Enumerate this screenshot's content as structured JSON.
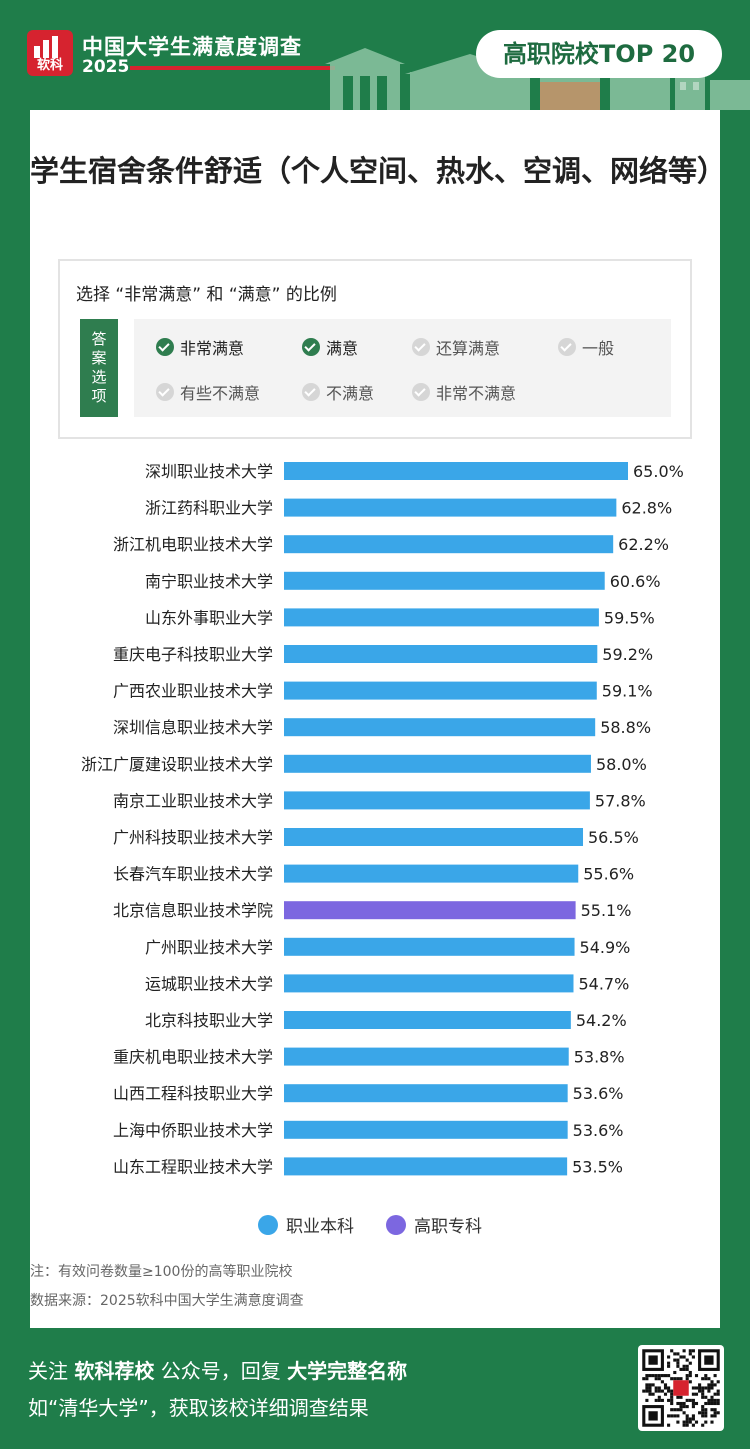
{
  "header": {
    "logo_text": "软科",
    "survey_title": "中国大学生满意度调查",
    "year": "2025",
    "badge": "高职院校TOP 20"
  },
  "title": "学生宿舍条件舒适（个人空间、热水、空调、网络等）",
  "legend_box": {
    "question": "选择 “非常满意” 和 “满意” 的比例",
    "tag": "答案选项",
    "options": [
      {
        "label": "非常满意",
        "selected": true
      },
      {
        "label": "满意",
        "selected": true
      },
      {
        "label": "还算满意",
        "selected": false
      },
      {
        "label": "一般",
        "selected": false
      },
      {
        "label": "有些不满意",
        "selected": false
      },
      {
        "label": "不满意",
        "selected": false
      },
      {
        "label": "非常不满意",
        "selected": false
      }
    ]
  },
  "colors": {
    "green": "#1f7d4a",
    "bar_benke": "#3aa6e8",
    "bar_zhuanke": "#7c67e0"
  },
  "chart_data": {
    "type": "bar",
    "orientation": "horizontal",
    "unit": "%",
    "categories": [
      "深圳职业技术大学",
      "浙江药科职业大学",
      "浙江机电职业技术大学",
      "南宁职业技术大学",
      "山东外事职业大学",
      "重庆电子科技职业大学",
      "广西农业职业技术大学",
      "深圳信息职业技术大学",
      "浙江广厦建设职业技术大学",
      "南京工业职业技术大学",
      "广州科技职业技术大学",
      "长春汽车职业技术大学",
      "北京信息职业技术学院",
      "广州职业技术大学",
      "运城职业技术大学",
      "北京科技职业大学",
      "重庆机电职业技术大学",
      "山西工程科技职业大学",
      "上海中侨职业技术大学",
      "山东工程职业技术大学"
    ],
    "values": [
      65.0,
      62.8,
      62.2,
      60.6,
      59.5,
      59.2,
      59.1,
      58.8,
      58.0,
      57.8,
      56.5,
      55.6,
      55.1,
      54.9,
      54.7,
      54.2,
      53.8,
      53.6,
      53.6,
      53.5
    ],
    "value_labels": [
      "65.0%",
      "62.8%",
      "62.2%",
      "60.6%",
      "59.5%",
      "59.2%",
      "59.1%",
      "58.8%",
      "58.0%",
      "57.8%",
      "56.5%",
      "55.6%",
      "55.1%",
      "54.9%",
      "54.7%",
      "54.2%",
      "53.8%",
      "53.6%",
      "53.6%",
      "53.5%"
    ],
    "groups": [
      "b",
      "b",
      "b",
      "b",
      "b",
      "b",
      "b",
      "b",
      "b",
      "b",
      "b",
      "b",
      "z",
      "b",
      "b",
      "b",
      "b",
      "b",
      "b",
      "b"
    ],
    "legend": [
      {
        "key": "b",
        "name": "职业本科"
      },
      {
        "key": "z",
        "name": "高职专科"
      }
    ],
    "legend_position": "bottom",
    "grid": false
  },
  "notes": {
    "note": "注：有效问卷数量≥100份的高等职业院校",
    "source": "数据来源：2025软科中国大学生满意度调查"
  },
  "footer": {
    "l1_a": "关注 ",
    "l1_b": "软科荐校",
    "l1_c": " 公众号，回复 ",
    "l1_d": "大学完整名称",
    "l2": "如“清华大学”，获取该校详细调查结果",
    "qr_label": "软科荐校"
  }
}
